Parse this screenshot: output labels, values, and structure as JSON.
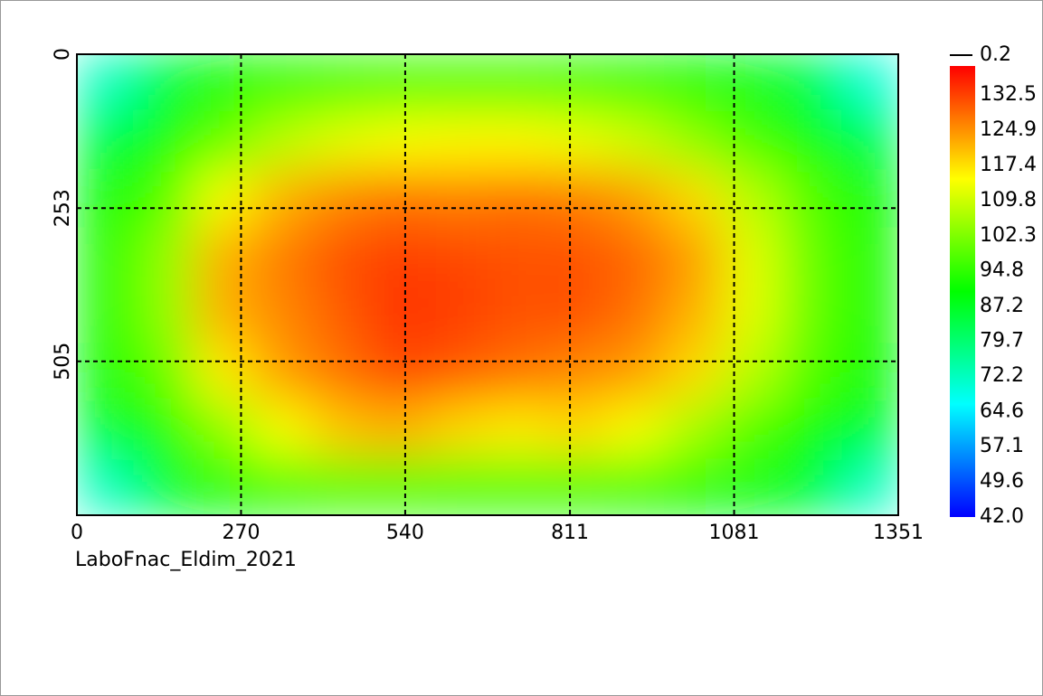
{
  "chart_data": {
    "type": "heatmap",
    "subtitle": "LaboFnac_Eldim_2021",
    "x": [
      48,
      145,
      241,
      338,
      434,
      531,
      627,
      724,
      820,
      917,
      1013,
      1110,
      1206,
      1303
    ],
    "y": [
      47,
      142,
      237,
      332,
      427,
      522,
      617,
      712
    ],
    "z": [
      [
        72,
        85,
        90,
        93,
        95,
        96,
        96,
        96,
        95,
        93,
        90,
        88,
        84,
        70
      ],
      [
        85,
        92,
        100,
        108,
        112,
        114,
        115,
        115,
        113,
        110,
        104,
        97,
        92,
        84
      ],
      [
        90,
        98,
        114,
        122,
        126,
        128,
        127,
        128,
        127,
        124,
        118,
        108,
        98,
        90
      ],
      [
        92,
        104,
        122,
        127,
        131,
        133,
        132,
        131,
        131,
        129,
        124,
        112,
        100,
        92
      ],
      [
        92,
        104,
        122,
        126,
        130,
        134,
        133,
        131,
        131,
        128,
        122,
        112,
        100,
        92
      ],
      [
        90,
        100,
        116,
        124,
        128,
        132,
        130,
        128,
        126,
        124,
        118,
        108,
        98,
        90
      ],
      [
        86,
        93,
        104,
        114,
        120,
        122,
        118,
        116,
        118,
        114,
        106,
        98,
        92,
        86
      ],
      [
        72,
        86,
        90,
        93,
        96,
        96,
        95,
        95,
        95,
        93,
        90,
        88,
        86,
        72
      ]
    ],
    "xlim": [
      0,
      1351
    ],
    "xticks": [
      0,
      270,
      540,
      811,
      1081,
      1351
    ],
    "ylim": [
      0,
      758
    ],
    "yticks": [
      0,
      253,
      505
    ],
    "y_inverted": true,
    "grid": true,
    "colormap": [
      "#0000ff",
      "#00ffff",
      "#00ff00",
      "#ffff00",
      "#ff0000"
    ],
    "clim": [
      42,
      138.7
    ],
    "cticks": [
      132.5,
      124.9,
      117.4,
      109.8,
      102.3,
      94.8,
      87.2,
      79.7,
      72.2,
      64.6,
      57.1,
      49.6,
      {
        "value": 42,
        "label": "42.0"
      }
    ],
    "colorbar_marker": 0.2
  }
}
